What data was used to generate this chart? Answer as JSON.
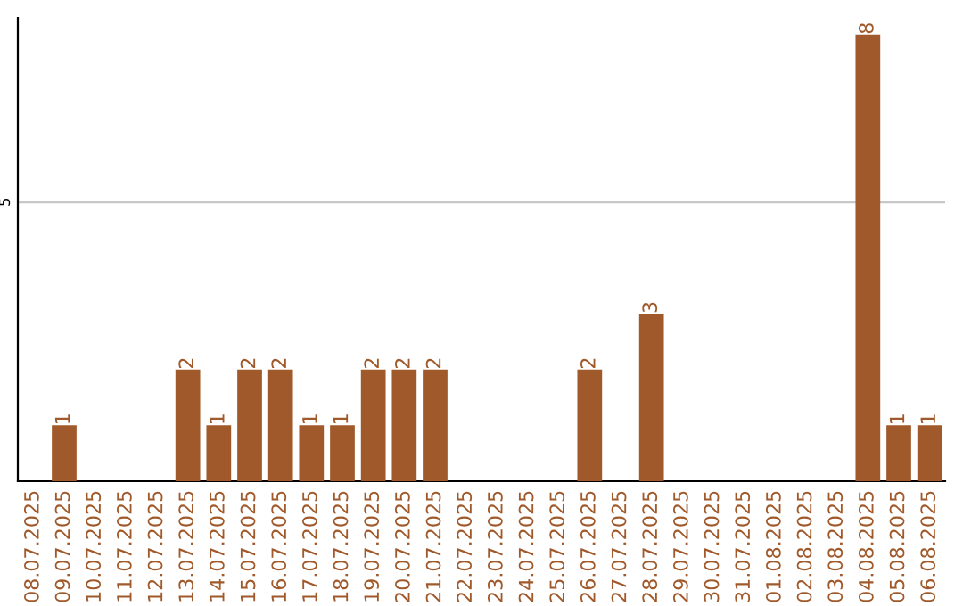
{
  "chart_data": {
    "type": "bar",
    "categories": [
      "08.07.2025",
      "09.07.2025",
      "10.07.2025",
      "11.07.2025",
      "12.07.2025",
      "13.07.2025",
      "14.07.2025",
      "15.07.2025",
      "16.07.2025",
      "17.07.2025",
      "18.07.2025",
      "19.07.2025",
      "20.07.2025",
      "21.07.2025",
      "22.07.2025",
      "23.07.2025",
      "24.07.2025",
      "25.07.2025",
      "26.07.2025",
      "27.07.2025",
      "28.07.2025",
      "29.07.2025",
      "30.07.2025",
      "31.07.2025",
      "01.08.2025",
      "02.08.2025",
      "03.08.2025",
      "04.08.2025",
      "05.08.2025",
      "06.08.2025"
    ],
    "values": [
      0,
      1,
      0,
      0,
      0,
      2,
      1,
      2,
      2,
      1,
      1,
      2,
      2,
      2,
      0,
      0,
      0,
      0,
      2,
      0,
      3,
      0,
      0,
      0,
      0,
      0,
      0,
      8,
      1,
      1
    ],
    "value_labels": [
      null,
      "1",
      null,
      null,
      null,
      "2",
      "1",
      "2",
      "2",
      "1",
      "1",
      "2",
      "2",
      "2",
      null,
      null,
      null,
      null,
      "2",
      null,
      "3",
      null,
      null,
      null,
      null,
      null,
      null,
      "8",
      "1",
      "1"
    ],
    "color": "#a0592a",
    "ylim": [
      0,
      8.3
    ],
    "yticks": [
      5
    ],
    "grid": "y"
  }
}
